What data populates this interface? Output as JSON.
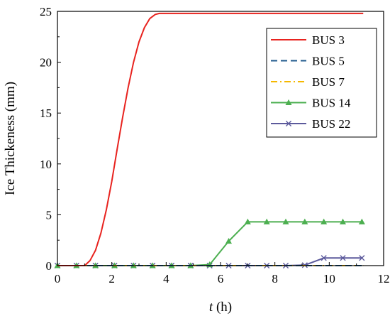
{
  "chart_data": {
    "type": "line",
    "title": "",
    "xlabel_var": "t",
    "xlabel_unit": " (h)",
    "ylabel": "Ice Thickeness (mm)",
    "xlim": [
      0,
      12
    ],
    "ylim": [
      0,
      25
    ],
    "xticks": [
      "0",
      "2",
      "4",
      "6",
      "8",
      "10",
      "12"
    ],
    "yticks": [
      "0",
      "5",
      "10",
      "15",
      "20",
      "25"
    ],
    "grid": false,
    "legend_position": "top-right",
    "series": [
      {
        "name": "BUS 3",
        "color": "#e8231f",
        "style": "solid",
        "marker": "none",
        "x": [
          0,
          0.5,
          1.0,
          1.2,
          1.4,
          1.6,
          1.8,
          2.0,
          2.2,
          2.4,
          2.6,
          2.8,
          3.0,
          3.2,
          3.4,
          3.6,
          3.75,
          4.0,
          5.0,
          6.0,
          7.0,
          8.0,
          9.0,
          10.0,
          11.25
        ],
        "y": [
          0,
          0,
          0,
          0.5,
          1.5,
          3.2,
          5.5,
          8.3,
          11.5,
          14.6,
          17.5,
          20.0,
          22.0,
          23.4,
          24.3,
          24.7,
          24.8,
          24.8,
          24.8,
          24.8,
          24.8,
          24.8,
          24.8,
          24.8,
          24.8
        ]
      },
      {
        "name": "BUS 5",
        "color": "#1f5a8c",
        "style": "dash",
        "marker": "none",
        "x": [
          0,
          11.25
        ],
        "y": [
          0,
          0
        ]
      },
      {
        "name": "BUS 7",
        "color": "#f5b800",
        "style": "dashdot",
        "marker": "none",
        "x": [
          0,
          11.25
        ],
        "y": [
          0,
          0
        ]
      },
      {
        "name": "BUS 14",
        "color": "#4caf50",
        "style": "solid",
        "marker": "triangle",
        "x": [
          0,
          0.7,
          1.4,
          2.1,
          2.8,
          3.5,
          4.2,
          4.9,
          5.6,
          6.3,
          7.0,
          7.7,
          8.4,
          9.1,
          9.8,
          10.5,
          11.2
        ],
        "y": [
          0,
          0,
          0,
          0,
          0,
          0,
          0,
          0,
          0.1,
          2.4,
          4.3,
          4.3,
          4.3,
          4.3,
          4.3,
          4.3,
          4.3
        ]
      },
      {
        "name": "BUS 22",
        "color": "#5c5a9c",
        "style": "solid",
        "marker": "x",
        "x": [
          0,
          0.7,
          1.4,
          2.1,
          2.8,
          3.5,
          4.2,
          4.9,
          5.6,
          6.3,
          7.0,
          7.7,
          8.4,
          9.1,
          9.8,
          10.5,
          11.2
        ],
        "y": [
          0,
          0,
          0,
          0,
          0,
          0,
          0,
          0,
          0,
          0,
          0,
          0,
          0,
          0.05,
          0.75,
          0.75,
          0.75
        ]
      }
    ]
  }
}
